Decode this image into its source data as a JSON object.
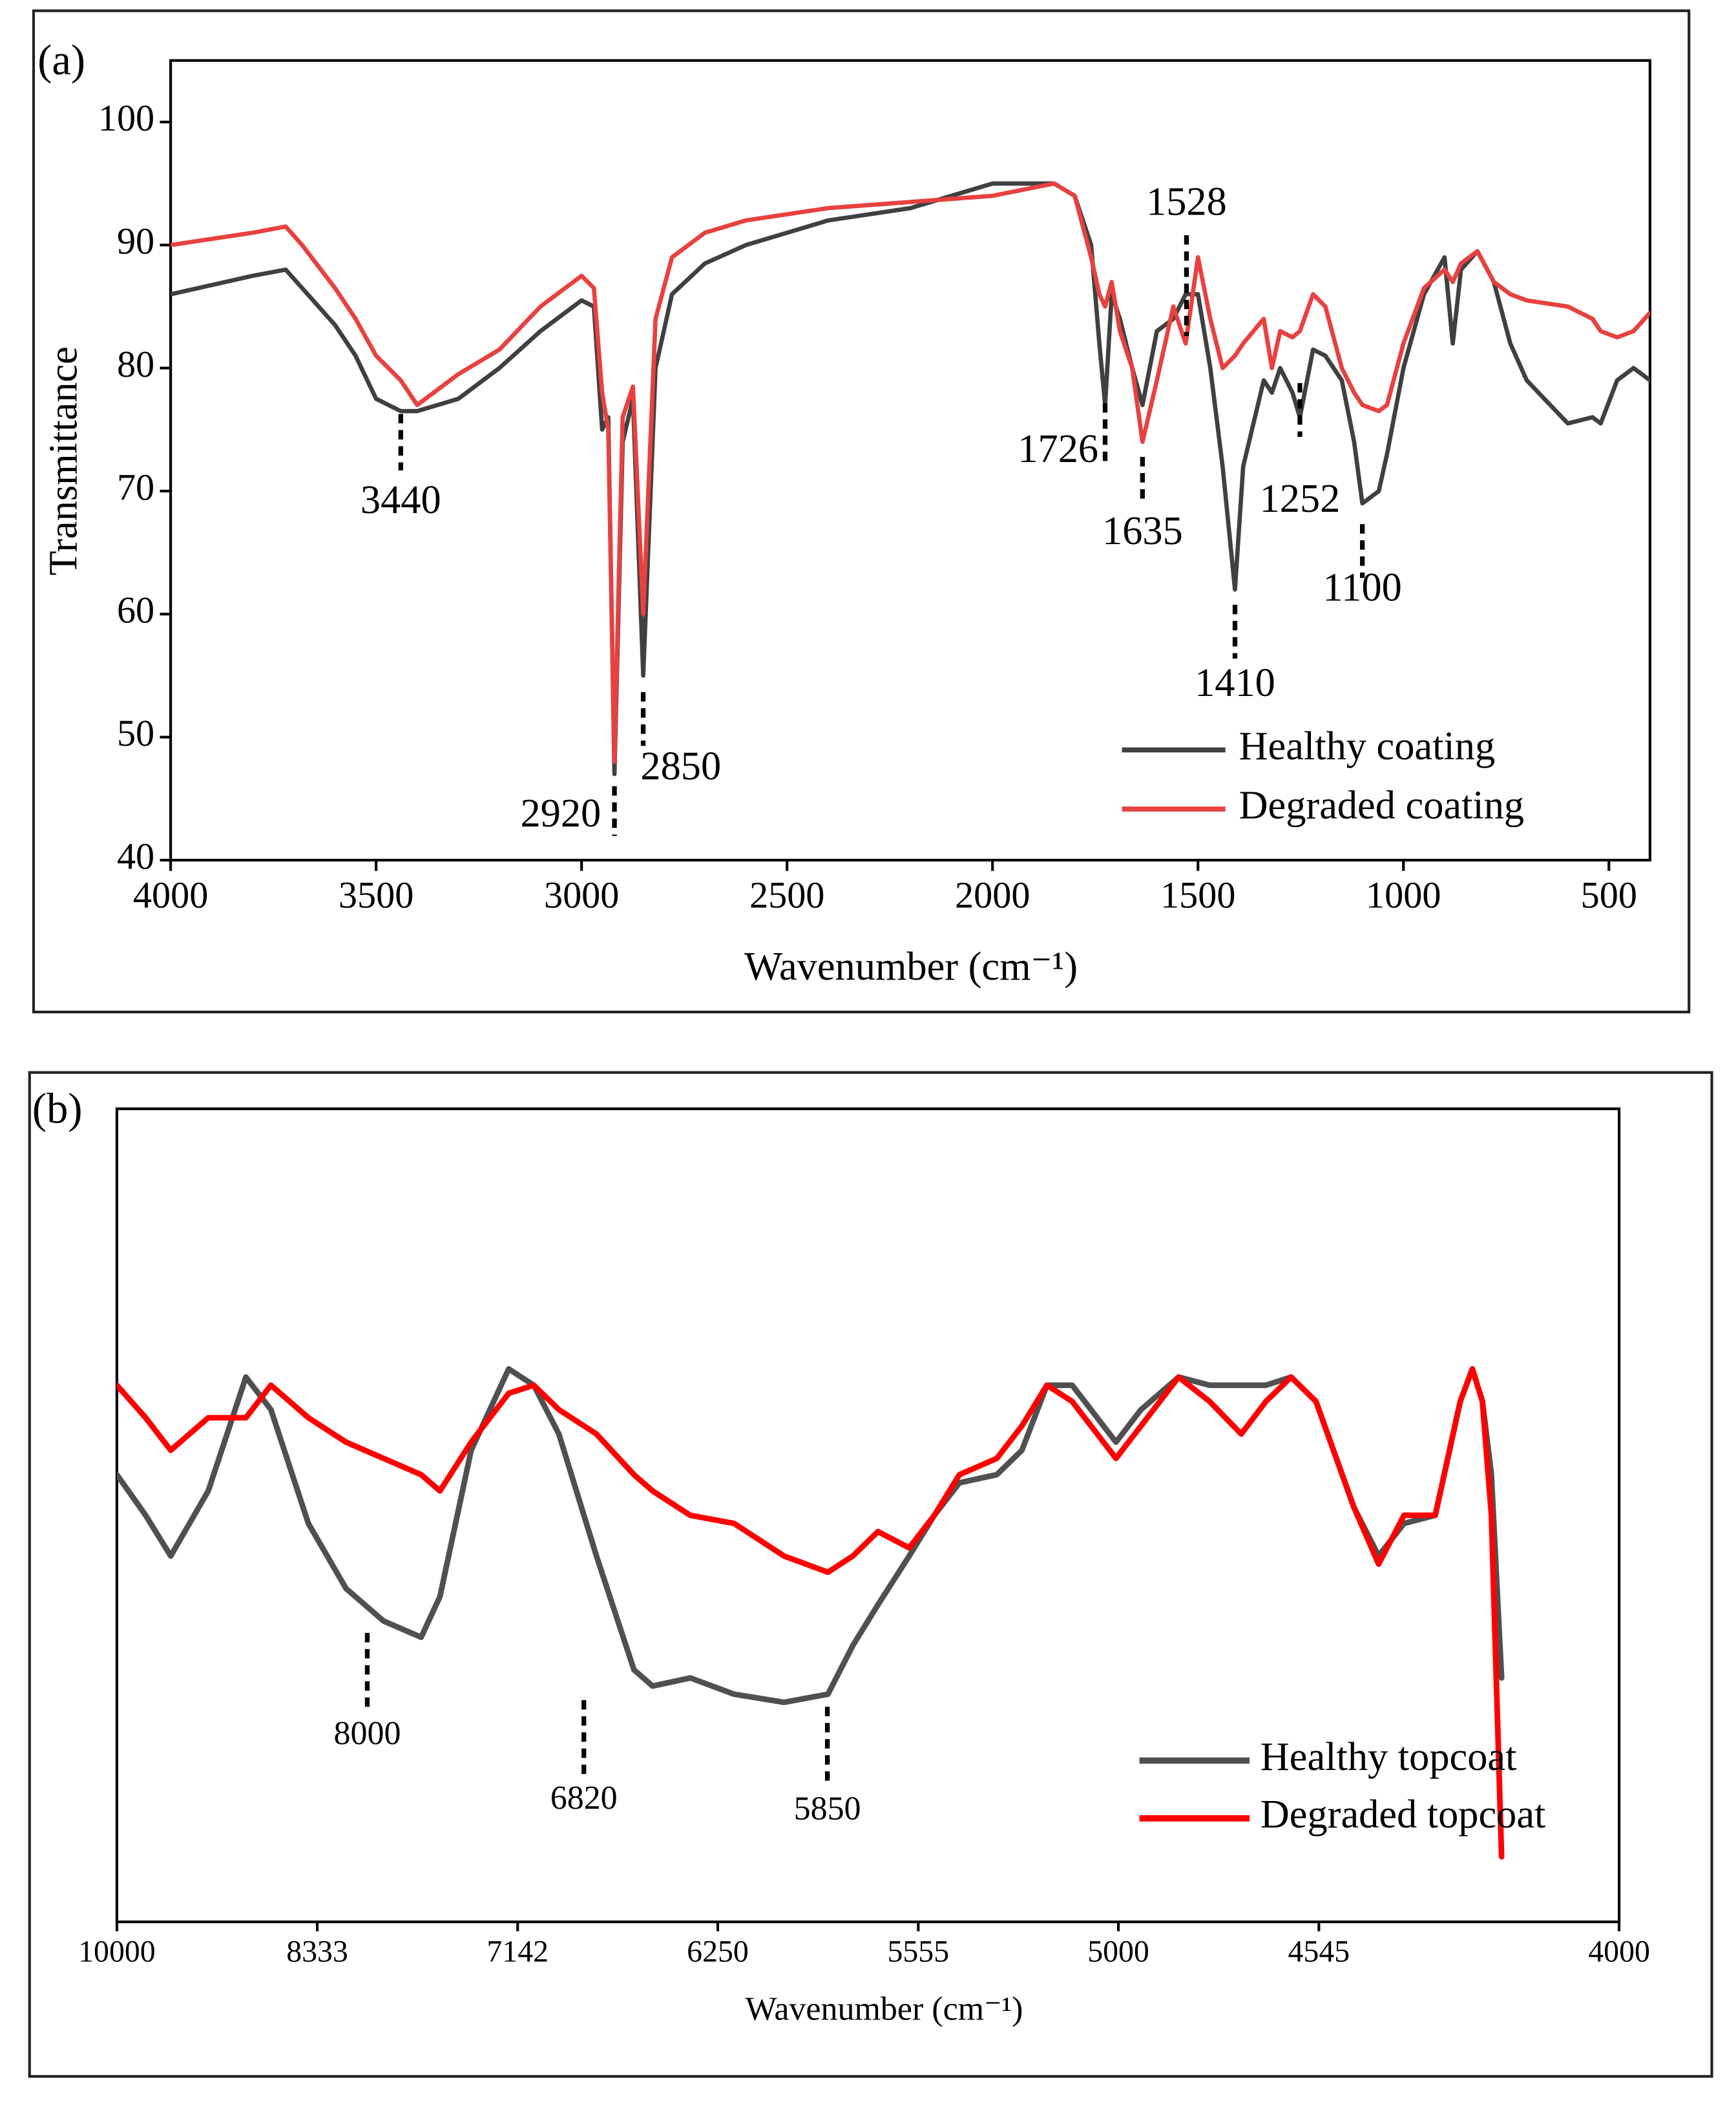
{
  "chart_data": [
    {
      "type": "line",
      "panel_label": "(a)",
      "x_label": "Wavenumber (cm⁻¹)",
      "y_label": "Transmittance",
      "xlim": [
        4000,
        400
      ],
      "ylim": [
        40,
        105
      ],
      "xticks": [
        4000,
        3500,
        3000,
        2500,
        2000,
        1500,
        1000,
        500
      ],
      "yticks": [
        40,
        50,
        60,
        70,
        80,
        90,
        100
      ],
      "x": [
        4000,
        3800,
        3720,
        3680,
        3600,
        3550,
        3500,
        3440,
        3400,
        3300,
        3200,
        3100,
        3000,
        2970,
        2950,
        2935,
        2920,
        2900,
        2875,
        2850,
        2820,
        2780,
        2700,
        2600,
        2500,
        2400,
        2200,
        2000,
        1850,
        1800,
        1760,
        1740,
        1726,
        1710,
        1690,
        1660,
        1635,
        1600,
        1560,
        1530,
        1500,
        1470,
        1440,
        1410,
        1390,
        1340,
        1320,
        1300,
        1270,
        1252,
        1220,
        1190,
        1150,
        1120,
        1100,
        1060,
        1040,
        1000,
        950,
        900,
        880,
        860,
        820,
        780,
        740,
        700,
        600,
        540,
        520,
        480,
        440,
        400
      ],
      "series": [
        {
          "name": "Healthy coating",
          "color": "#404040",
          "values": [
            86,
            87.5,
            88,
            86.5,
            83.5,
            81,
            77.5,
            76.5,
            76.5,
            77.5,
            80,
            83,
            85.5,
            85,
            75,
            76,
            47,
            74,
            77.5,
            55,
            80,
            86,
            88.5,
            90,
            91,
            92,
            93,
            95,
            95,
            94,
            90,
            82,
            77,
            86,
            84,
            80,
            77,
            83,
            84,
            86,
            86,
            80,
            72,
            62,
            72,
            79,
            78,
            80,
            78,
            76,
            81.5,
            81,
            79,
            74,
            69,
            70,
            73,
            80,
            86,
            89,
            82,
            88,
            89.5,
            87,
            82,
            79,
            75.5,
            76,
            75.5,
            79,
            80,
            79
          ]
        },
        {
          "name": "Degraded coating",
          "color": "#e8413f",
          "values": [
            90,
            91,
            91.5,
            90,
            86.5,
            84,
            81,
            79,
            77,
            79.5,
            81.5,
            85,
            87.5,
            86.5,
            78,
            75,
            48,
            76,
            78.5,
            60,
            84,
            89,
            91,
            92,
            92.5,
            93,
            93.5,
            94,
            95,
            94,
            89,
            86,
            85,
            87,
            83,
            80,
            74,
            79,
            85,
            82,
            89,
            84,
            80,
            81,
            82,
            84,
            80,
            83,
            82.5,
            83,
            86,
            85,
            80,
            78,
            77,
            76.5,
            77,
            82,
            86.5,
            88,
            87,
            88.5,
            89.5,
            87,
            86,
            85.5,
            85,
            84,
            83,
            82.5,
            83,
            84.5
          ]
        }
      ],
      "peaks": [
        3440,
        2920,
        2850,
        1726,
        1635,
        1528,
        1410,
        1252,
        1100
      ],
      "legend": "lower right"
    },
    {
      "type": "line",
      "panel_label": "(b)",
      "x_label": "Wavenumber (cm⁻¹)",
      "xscale": "reciprocal",
      "xlim": [
        10000,
        4000
      ],
      "ylim": [
        0,
        100
      ],
      "xticks": [
        10000,
        8333,
        7142,
        6250,
        5555,
        5000,
        4545,
        4000
      ],
      "x": [
        10000,
        9721,
        9490,
        9164,
        8859,
        8667,
        8395,
        8138,
        7897,
        7670,
        7561,
        7387,
        7188,
        7061,
        6938,
        6762,
        6595,
        6515,
        6359,
        6187,
        6002,
        5848,
        5764,
        5682,
        5583,
        5506,
        5431,
        5323,
        5253,
        5185,
        5118,
        5006,
        4944,
        4854,
        4782,
        4711,
        4657,
        4603,
        4551,
        4474,
        4425,
        4376,
        4317,
        4271,
        4249,
        4231,
        4215,
        4197
      ],
      "series": [
        {
          "name": "Healthy topcoat",
          "color": "#505050",
          "values": [
            55,
            50,
            45,
            53,
            67,
            63,
            49,
            41,
            37,
            35,
            40,
            58,
            68,
            66,
            60,
            45,
            31,
            29,
            30,
            28,
            27,
            28,
            34,
            39,
            45,
            50,
            54,
            55,
            58,
            66,
            66,
            59,
            63,
            67,
            66,
            66,
            66,
            67,
            64,
            51,
            45,
            49,
            50,
            64,
            68,
            64,
            55,
            30
          ]
        },
        {
          "name": "Degraded topcoat",
          "color": "#ff0000",
          "values": [
            66,
            62,
            58,
            62,
            62,
            66,
            62,
            59,
            57,
            55,
            53,
            59,
            65,
            66,
            63,
            60,
            55,
            53,
            50,
            49,
            45,
            43,
            45,
            48,
            46,
            50,
            55,
            57,
            61,
            66,
            64,
            57,
            61,
            67,
            64,
            60,
            64,
            67,
            64,
            51,
            44,
            50,
            50,
            64,
            68,
            64,
            50,
            8
          ]
        }
      ],
      "peaks": [
        8000,
        6820,
        5850
      ],
      "legend": "lower right"
    }
  ]
}
